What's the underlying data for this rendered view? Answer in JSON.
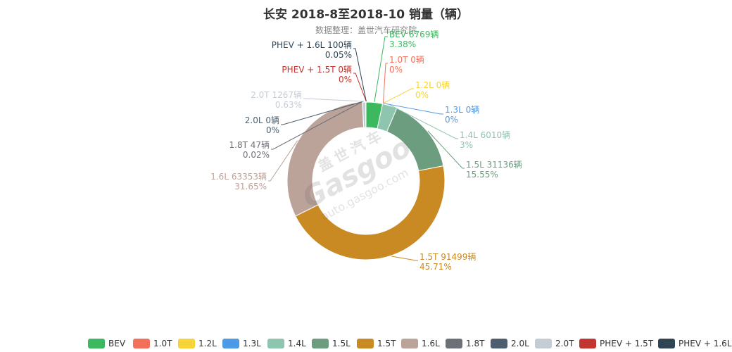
{
  "chart_data": {
    "type": "pie",
    "title": "长安 2018-8至2018-10 销量（辆）",
    "subtitle": "数据整理：盖世汽车研究院",
    "series": [
      {
        "name": "BEV",
        "value": 6769,
        "percent": "3.38%",
        "color": "#3cb95f",
        "label": "BEV 6769辆"
      },
      {
        "name": "1.0T",
        "value": 0,
        "percent": "0%",
        "color": "#f3715a",
        "label": "1.0T 0辆"
      },
      {
        "name": "1.2L",
        "value": 0,
        "percent": "0%",
        "color": "#f7d43a",
        "label": "1.2L 0辆"
      },
      {
        "name": "1.3L",
        "value": 0,
        "percent": "0%",
        "color": "#4d9be6",
        "label": "1.3L 0辆"
      },
      {
        "name": "1.4L",
        "value": 6010,
        "percent": "3%",
        "color": "#8ec5ae",
        "label": "1.4L 6010辆"
      },
      {
        "name": "1.5L",
        "value": 31136,
        "percent": "15.55%",
        "color": "#6c9d7f",
        "label": "1.5L 31136辆"
      },
      {
        "name": "1.5T",
        "value": 91499,
        "percent": "45.71%",
        "color": "#c98a24",
        "label": "1.5T 91499辆"
      },
      {
        "name": "1.6L",
        "value": 63353,
        "percent": "31.65%",
        "color": "#bca39a",
        "label": "1.6L 63353辆"
      },
      {
        "name": "1.8T",
        "value": 47,
        "percent": "0.02%",
        "color": "#6e7078",
        "label": "1.8T 47辆"
      },
      {
        "name": "2.0L",
        "value": 0,
        "percent": "0%",
        "color": "#4d5f6e",
        "label": "2.0L 0辆"
      },
      {
        "name": "2.0T",
        "value": 1267,
        "percent": "0.63%",
        "color": "#c4ccd4",
        "label": "2.0T 1267辆"
      },
      {
        "name": "PHEV + 1.5T",
        "value": 0,
        "percent": "0%",
        "color": "#c23531",
        "label": "PHEV + 1.5T 0辆"
      },
      {
        "name": "PHEV + 1.6L",
        "value": 100,
        "percent": "0.05%",
        "color": "#2f4554",
        "label": "PHEV + 1.6L 100辆"
      }
    ],
    "legend_position": "bottom"
  },
  "watermark": {
    "cn": "盖世汽车",
    "brand": "Gasgoo",
    "url": "auto.gasgoo.com"
  }
}
